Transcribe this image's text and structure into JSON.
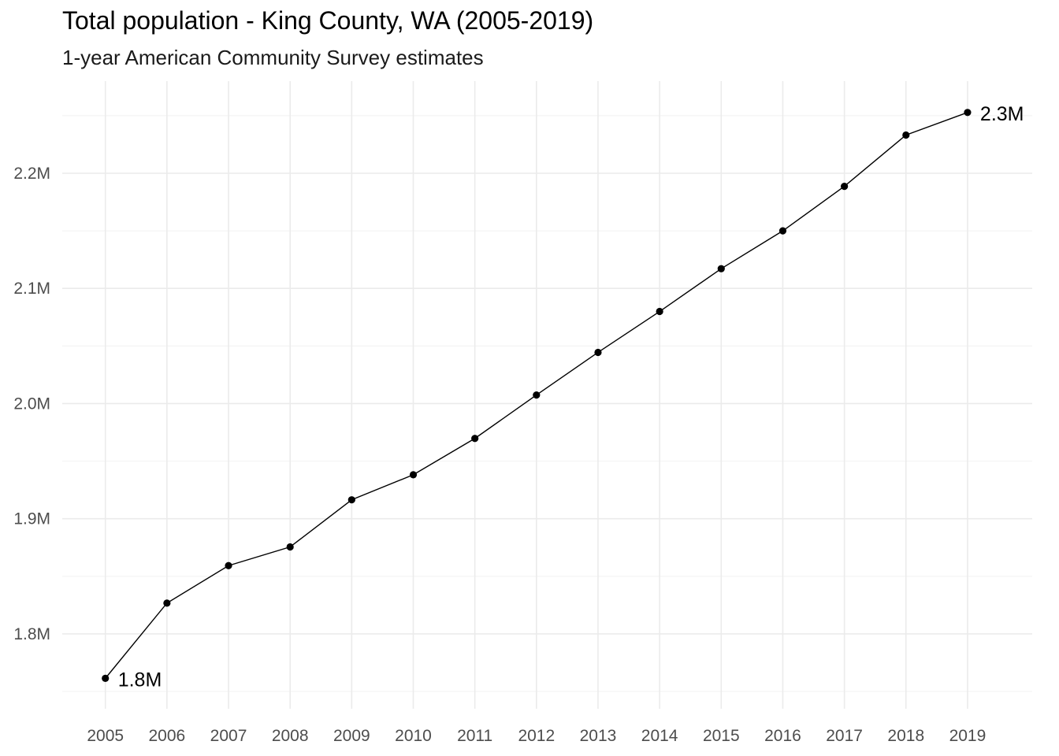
{
  "chart_data": {
    "type": "line",
    "title": "Total population - King County, WA (2005-2019)",
    "subtitle": "1-year American Community Survey estimates",
    "xlabel": "",
    "ylabel": "",
    "x": [
      2005,
      2006,
      2007,
      2008,
      2009,
      2010,
      2011,
      2012,
      2013,
      2014,
      2015,
      2016,
      2017,
      2018,
      2019
    ],
    "values": [
      1761411,
      1826732,
      1859284,
      1875519,
      1916441,
      1938180,
      1969722,
      2007440,
      2044449,
      2079967,
      2117125,
      2149970,
      2188649,
      2233163,
      2252782
    ],
    "x_tick_labels": [
      "2005",
      "2006",
      "2007",
      "2008",
      "2009",
      "2010",
      "2011",
      "2012",
      "2013",
      "2014",
      "2015",
      "2016",
      "2017",
      "2018",
      "2019"
    ],
    "y_ticks": [
      1800000,
      1900000,
      2000000,
      2100000,
      2200000
    ],
    "y_tick_labels": [
      "1.8M",
      "1.9M",
      "2.0M",
      "2.1M",
      "2.2M"
    ],
    "ylim": [
      1735000,
      2280000
    ],
    "xlim": [
      2004.3,
      2020.05
    ],
    "annotations": [
      {
        "x": 2005,
        "y": 1761411,
        "text": "1.8M"
      },
      {
        "x": 2019,
        "y": 2252782,
        "text": "2.3M"
      }
    ],
    "grid": true,
    "legend": "none",
    "colors": {
      "line": "#000000",
      "point": "#000000",
      "grid_major": "#ebebeb",
      "grid_minor": "#f4f4f4",
      "tick_text": "#4d4d4d"
    }
  }
}
